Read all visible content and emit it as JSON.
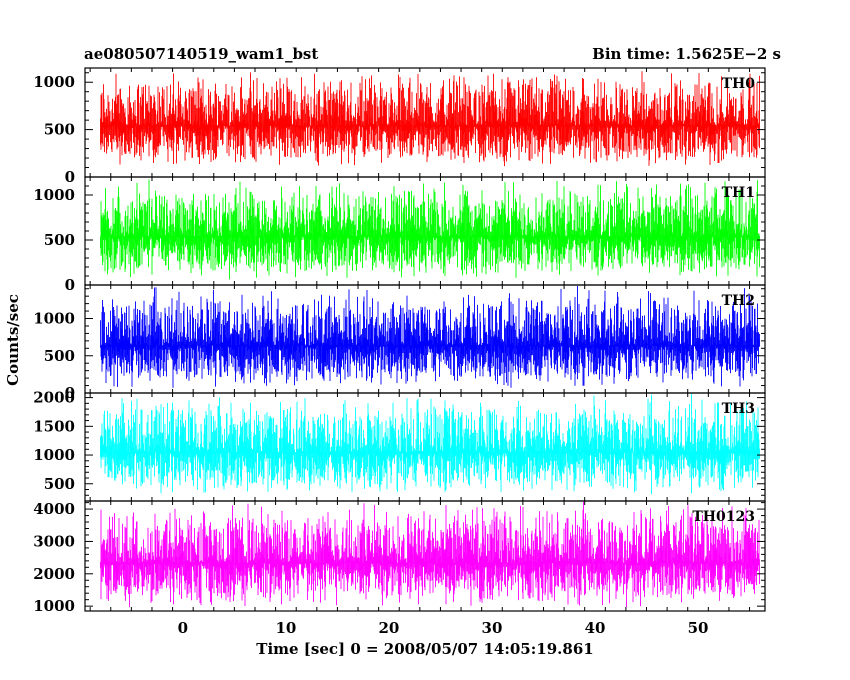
{
  "header": {
    "left_title": "ae080507140519_wam1_bst",
    "right_title": "Bin time: 1.5625E−2 s"
  },
  "xlabel": "Time [sec] 0 = 2008/05/07 14:05:19.861",
  "ylabel": "Counts/sec",
  "chart_data": [
    {
      "type": "line",
      "name": "TH0",
      "color": "#ff0000",
      "xlim": [
        -9.5,
        56.5
      ],
      "ylim": [
        0,
        1150
      ],
      "yticks": [
        0,
        500,
        1000
      ],
      "x_range": [
        -8,
        56
      ],
      "band": {
        "low": 100,
        "high": 1150
      }
    },
    {
      "type": "line",
      "name": "TH1",
      "color": "#00ff00",
      "xlim": [
        -9.5,
        56.5
      ],
      "ylim": [
        0,
        1200
      ],
      "yticks": [
        0,
        500,
        1000
      ],
      "x_range": [
        -8,
        56
      ],
      "band": {
        "low": 60,
        "high": 1200
      }
    },
    {
      "type": "line",
      "name": "TH2",
      "color": "#0000ff",
      "xlim": [
        -9.5,
        56.5
      ],
      "ylim": [
        0,
        1450
      ],
      "yticks": [
        0,
        500,
        1000
      ],
      "x_range": [
        -8,
        56
      ],
      "band": {
        "low": 50,
        "high": 1450
      }
    },
    {
      "type": "line",
      "name": "TH3",
      "color": "#00ffff",
      "xlim": [
        -9.5,
        56.5
      ],
      "ylim": [
        200,
        2080
      ],
      "yticks": [
        500,
        1000,
        1500,
        2000
      ],
      "x_range": [
        -8,
        56
      ],
      "band": {
        "low": 300,
        "high": 2080
      }
    },
    {
      "type": "line",
      "name": "TH0123",
      "color": "#ff00ff",
      "xlim": [
        -9.5,
        56.5
      ],
      "ylim": [
        850,
        4250
      ],
      "yticks": [
        1000,
        2000,
        3000,
        4000
      ],
      "x_range": [
        -8,
        56
      ],
      "band": {
        "low": 950,
        "high": 4250
      }
    }
  ],
  "x_axis": {
    "ticks": [
      0,
      10,
      20,
      30,
      40,
      50
    ],
    "tick_labels": [
      "0",
      "10",
      "20",
      "30",
      "40",
      "50"
    ]
  }
}
